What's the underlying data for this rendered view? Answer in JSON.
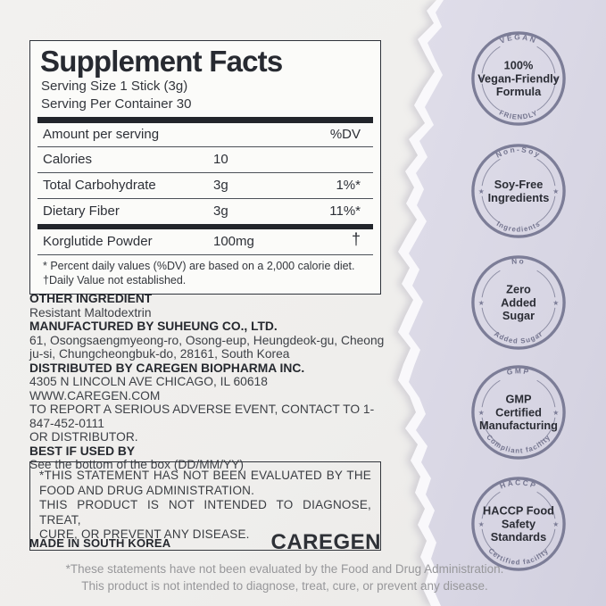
{
  "page": {
    "colors": {
      "accent": "#7c7d97",
      "lavender-light": "#e0deea",
      "lavender-dark": "#d2d0df",
      "paper": "#f1f0ee",
      "ink": "#2b2e35"
    }
  },
  "facts": {
    "title": "Supplement Facts",
    "serving_size": "Serving Size 1 Stick (3g)",
    "servings_per_container": "Serving Per Container 30",
    "header": {
      "amount": "Amount per serving",
      "dv": "%DV"
    },
    "rows": [
      {
        "name": "Calories",
        "amount": "10",
        "dv": "",
        "sep": "thin"
      },
      {
        "name": "Total Carbohydrate",
        "amount": "3g",
        "dv": "1%*",
        "sep": "thin"
      },
      {
        "name": "Dietary Fiber",
        "amount": "3g",
        "dv": "11%*",
        "sep": "thin"
      },
      {
        "name": "Korglutide Powder",
        "amount": "100mg",
        "dv": "†",
        "sep": "thick"
      }
    ],
    "footnote_line1": "* Percent daily values (%DV) are based on a 2,000 calorie diet.",
    "footnote_line2": "†Daily Value not established."
  },
  "info": {
    "lines": [
      {
        "text": "OTHER INGREDIENT",
        "bold": true
      },
      {
        "text": "Resistant Maltodextrin",
        "bold": false
      },
      {
        "text": "MANUFACTURED BY SUHEUNG CO., LTD.",
        "bold": true
      },
      {
        "text": "61, Osongsaengmyeong-ro, Osong-eup, Heungdeok-gu, Cheong",
        "bold": false
      },
      {
        "text": "ju-si, Chungcheongbuk-do, 28161, South Korea",
        "bold": false
      },
      {
        "text": "DISTRIBUTED BY CAREGEN BIOPHARMA INC.",
        "bold": true
      },
      {
        "text": "4305 N LINCOLN AVE CHICAGO, IL 60618",
        "bold": false
      },
      {
        "text": "WWW.CAREGEN.COM",
        "bold": false
      },
      {
        "text": "TO REPORT A SERIOUS ADVERSE EVENT, CONTACT TO 1-847-452-0111",
        "bold": false
      },
      {
        "text": "OR DISTRIBUTOR.",
        "bold": false
      },
      {
        "text": "BEST IF USED BY",
        "bold": true
      },
      {
        "text": "See the bottom of the box (DD/MM/YY)",
        "bold": false
      }
    ]
  },
  "statement_box": {
    "lines": [
      {
        "text": "*THIS STATEMENT HAS NOT BEEN EVALUATED BY THE",
        "stretch": true
      },
      {
        "text": "FOOD AND DRUG ADMINISTRATION.",
        "stretch": false
      },
      {
        "text": "THIS PRODUCT IS NOT INTENDED TO DIAGNOSE, TREAT,",
        "stretch": true
      },
      {
        "text": "CURE, OR PREVENT ANY DISEASE.",
        "stretch": false
      }
    ]
  },
  "made_in": "MADE IN SOUTH KOREA",
  "brand": "CAREGEN",
  "badges": [
    {
      "id": "vegan-friendly",
      "arc_top": "VEGAN",
      "arc_bottom": "FRIENDLY",
      "lines": [
        "100%",
        "Vegan-Friendly",
        "Formula"
      ]
    },
    {
      "id": "soy-free",
      "arc_top": "Non-Soy",
      "arc_bottom": "Ingredients",
      "lines": [
        "Soy-Free",
        "Ingredients"
      ]
    },
    {
      "id": "zero-added-sugar",
      "arc_top": "No",
      "arc_bottom": "Added Sugar",
      "lines": [
        "Zero",
        "Added",
        "Sugar"
      ]
    },
    {
      "id": "gmp-certified",
      "arc_top": "GMP",
      "arc_bottom": "Compliant facility",
      "lines": [
        "GMP",
        "Certified",
        "Manufacturing"
      ]
    },
    {
      "id": "haccp",
      "arc_top": "HACCP",
      "arc_bottom": "Certified facility",
      "lines": [
        "HACCP Food",
        "Safety",
        "Standards"
      ]
    }
  ],
  "footer": {
    "line1": "*These statements have not been evaluated by the Food and Drug Administration.",
    "line2": "This product is not intended to diagnose, treat, cure, or prevent any disease."
  }
}
